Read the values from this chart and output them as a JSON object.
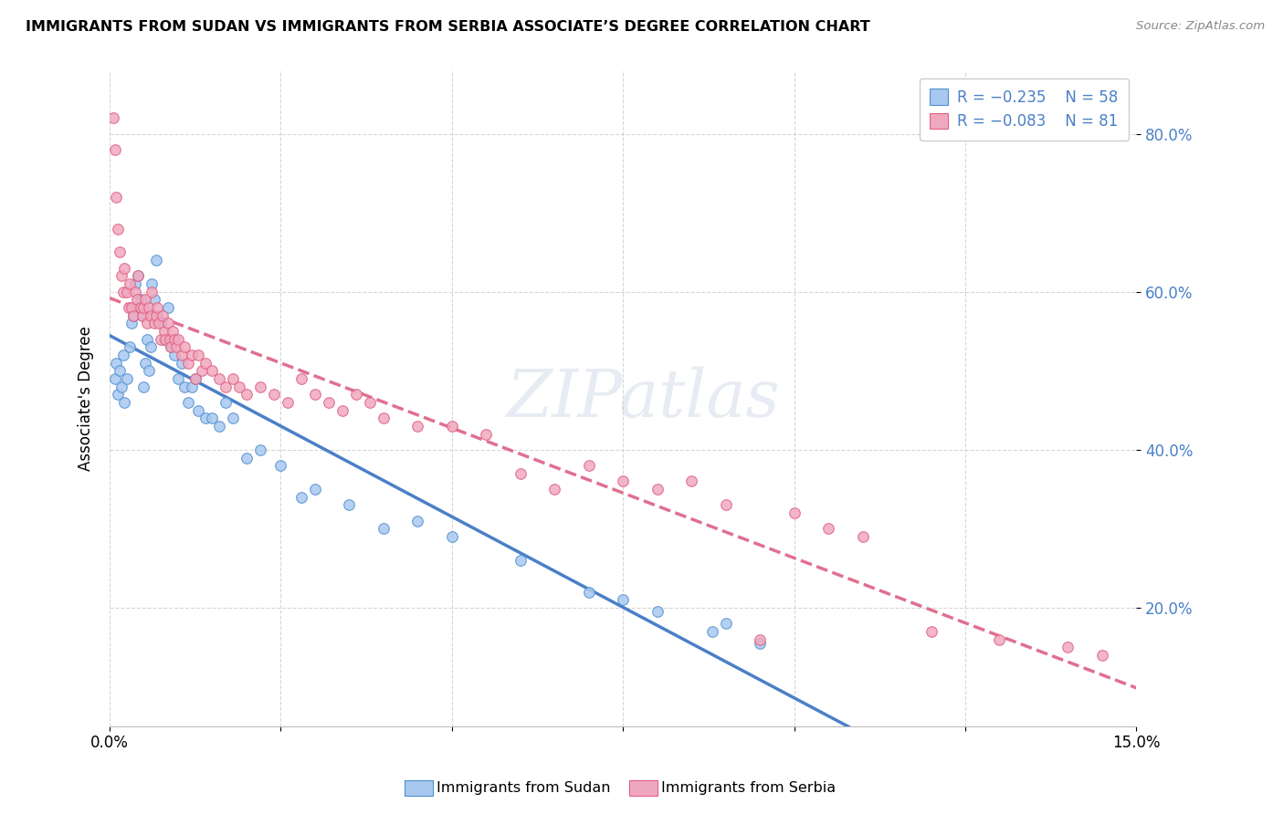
{
  "title": "IMMIGRANTS FROM SUDAN VS IMMIGRANTS FROM SERBIA ASSOCIATE’S DEGREE CORRELATION CHART",
  "source": "Source: ZipAtlas.com",
  "ylabel": "Associate's Degree",
  "y_ticks": [
    0.2,
    0.4,
    0.6,
    0.8
  ],
  "y_tick_labels": [
    "20.0%",
    "40.0%",
    "60.0%",
    "80.0%"
  ],
  "x_min": 0.0,
  "x_max": 0.15,
  "y_min": 0.05,
  "y_max": 0.88,
  "color_sudan": "#a8c8f0",
  "color_serbia": "#f0a8c0",
  "color_sudan_dark": "#5090d0",
  "color_serbia_dark": "#e06080",
  "color_sudan_line": "#4a80c8",
  "color_serbia_line": "#e07090",
  "watermark": "ZIPatlas",
  "legend_label1": "Immigrants from Sudan",
  "legend_label2": "Immigrants from Serbia",
  "sudan_x": [
    0.0008,
    0.001,
    0.0012,
    0.0015,
    0.0018,
    0.002,
    0.0022,
    0.0025,
    0.003,
    0.0032,
    0.0035,
    0.0038,
    0.004,
    0.0042,
    0.0045,
    0.0048,
    0.005,
    0.0052,
    0.0055,
    0.0058,
    0.006,
    0.0062,
    0.0065,
    0.0068,
    0.007,
    0.0075,
    0.008,
    0.0085,
    0.009,
    0.0095,
    0.01,
    0.0105,
    0.011,
    0.0115,
    0.012,
    0.0125,
    0.013,
    0.014,
    0.015,
    0.016,
    0.017,
    0.018,
    0.02,
    0.022,
    0.025,
    0.028,
    0.03,
    0.035,
    0.04,
    0.045,
    0.05,
    0.06,
    0.07,
    0.075,
    0.08,
    0.088,
    0.09,
    0.095
  ],
  "sudan_y": [
    0.49,
    0.51,
    0.47,
    0.5,
    0.48,
    0.52,
    0.46,
    0.49,
    0.53,
    0.56,
    0.57,
    0.61,
    0.58,
    0.62,
    0.59,
    0.57,
    0.48,
    0.51,
    0.54,
    0.5,
    0.53,
    0.61,
    0.59,
    0.64,
    0.57,
    0.56,
    0.54,
    0.58,
    0.53,
    0.52,
    0.49,
    0.51,
    0.48,
    0.46,
    0.48,
    0.49,
    0.45,
    0.44,
    0.44,
    0.43,
    0.46,
    0.44,
    0.39,
    0.4,
    0.38,
    0.34,
    0.35,
    0.33,
    0.3,
    0.31,
    0.29,
    0.26,
    0.22,
    0.21,
    0.195,
    0.17,
    0.18,
    0.155
  ],
  "serbia_x": [
    0.0005,
    0.0008,
    0.001,
    0.0012,
    0.0015,
    0.0018,
    0.002,
    0.0022,
    0.0025,
    0.0028,
    0.003,
    0.0032,
    0.0035,
    0.0038,
    0.004,
    0.0042,
    0.0045,
    0.0048,
    0.005,
    0.0052,
    0.0055,
    0.0058,
    0.006,
    0.0062,
    0.0065,
    0.0068,
    0.007,
    0.0072,
    0.0075,
    0.0078,
    0.008,
    0.0082,
    0.0085,
    0.0088,
    0.009,
    0.0092,
    0.0095,
    0.0098,
    0.01,
    0.0105,
    0.011,
    0.0115,
    0.012,
    0.0125,
    0.013,
    0.0135,
    0.014,
    0.015,
    0.016,
    0.017,
    0.018,
    0.019,
    0.02,
    0.022,
    0.024,
    0.026,
    0.028,
    0.03,
    0.032,
    0.034,
    0.036,
    0.038,
    0.04,
    0.045,
    0.05,
    0.055,
    0.06,
    0.065,
    0.07,
    0.075,
    0.08,
    0.085,
    0.09,
    0.095,
    0.1,
    0.105,
    0.11,
    0.12,
    0.13,
    0.14,
    0.145
  ],
  "serbia_y": [
    0.82,
    0.78,
    0.72,
    0.68,
    0.65,
    0.62,
    0.6,
    0.63,
    0.6,
    0.58,
    0.61,
    0.58,
    0.57,
    0.6,
    0.59,
    0.62,
    0.58,
    0.57,
    0.58,
    0.59,
    0.56,
    0.58,
    0.57,
    0.6,
    0.56,
    0.57,
    0.58,
    0.56,
    0.54,
    0.57,
    0.55,
    0.54,
    0.56,
    0.54,
    0.53,
    0.55,
    0.54,
    0.53,
    0.54,
    0.52,
    0.53,
    0.51,
    0.52,
    0.49,
    0.52,
    0.5,
    0.51,
    0.5,
    0.49,
    0.48,
    0.49,
    0.48,
    0.47,
    0.48,
    0.47,
    0.46,
    0.49,
    0.47,
    0.46,
    0.45,
    0.47,
    0.46,
    0.44,
    0.43,
    0.43,
    0.42,
    0.37,
    0.35,
    0.38,
    0.36,
    0.35,
    0.36,
    0.33,
    0.16,
    0.32,
    0.3,
    0.29,
    0.17,
    0.16,
    0.15,
    0.14
  ]
}
